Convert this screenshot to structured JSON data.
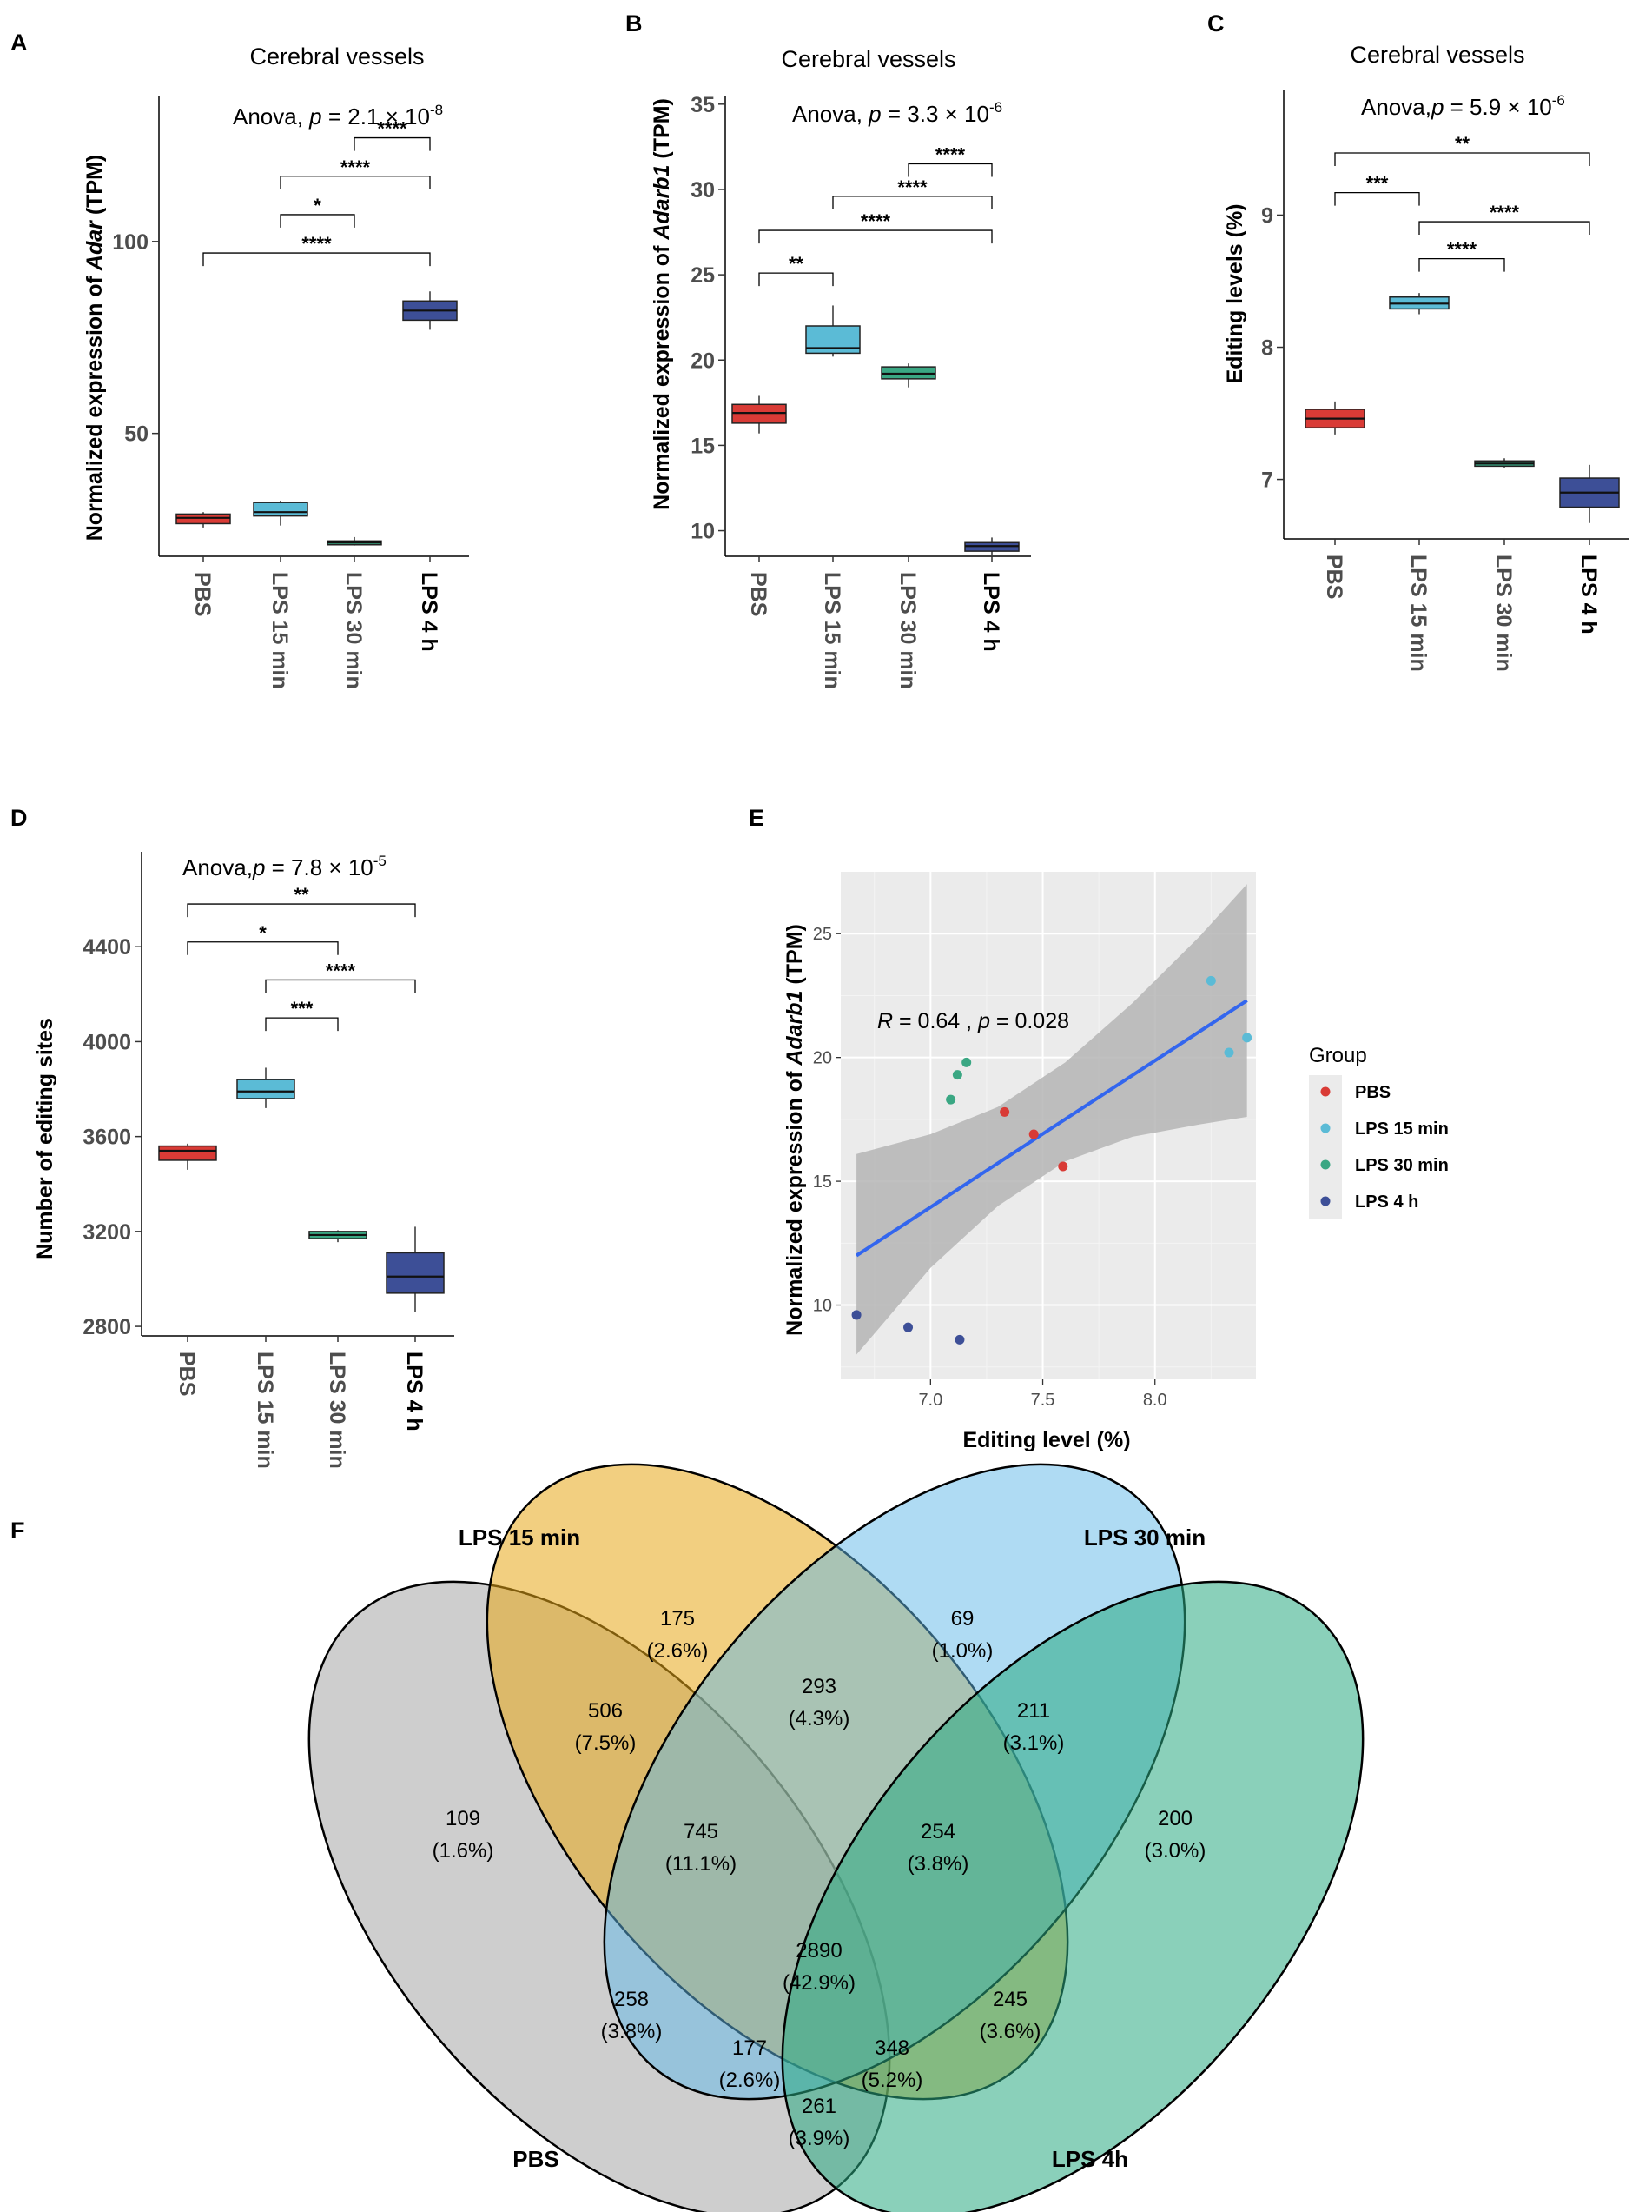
{
  "panels": {
    "A": {
      "letter": "A",
      "title": "Cerebral vessels",
      "anova_prefix": "Anova, ",
      "anova_p": "p",
      "anova_eq": " = 2.1 × 10",
      "anova_exp": "-8",
      "ylabel_pre": "Normalized expression of ",
      "ylabel_gene": "Adar",
      "ylabel_post": " (TPM)"
    },
    "B": {
      "letter": "B",
      "title": "Cerebral vessels",
      "anova_prefix": "Anova, ",
      "anova_p": "p",
      "anova_eq": " = 3.3  × 10",
      "anova_exp": "-6",
      "ylabel_pre": "Normalized expression of ",
      "ylabel_gene": "Adarb1",
      "ylabel_post": " (TPM)"
    },
    "C": {
      "letter": "C",
      "title": "Cerebral vessels",
      "anova_prefix": "Anova,",
      "anova_p": "p",
      "anova_eq": " = 5.9 × 10",
      "anova_exp": "-6",
      "ylabel_pre": "Editing levels (%)",
      "ylabel_gene": "",
      "ylabel_post": ""
    },
    "D": {
      "letter": "D",
      "title": "",
      "anova_prefix": "Anova,",
      "anova_p": "p",
      "anova_eq": " = 7.8 × 10",
      "anova_exp": "-5",
      "ylabel_pre": "Number of editing sites",
      "ylabel_gene": "",
      "ylabel_post": ""
    },
    "E": {
      "letter": "E",
      "xlabel": "Editing level (%)",
      "ylabel_pre": "Normalized expression of ",
      "ylabel_gene": "Adarb1",
      "ylabel_post": " (TPM)",
      "cor_R": "R",
      "cor_text1": " = 0.64 , ",
      "cor_p": "p",
      "cor_text2": " = 0.028",
      "legend_title": "Group"
    },
    "F": {
      "letter": "F"
    }
  },
  "groups": [
    "PBS",
    "LPS 15 min",
    "LPS 30 min",
    "LPS 4 h"
  ],
  "colors": {
    "PBS": "#d93b36",
    "LPS 15 min": "#5bbbd6",
    "LPS 30 min": "#3aa783",
    "LPS 4 h": "#3d4f97",
    "regression": "#3366ee",
    "band": "#b5b5b5",
    "panel_bg": "#ebebeb"
  },
  "chart_data": [
    {
      "id": "A",
      "type": "box",
      "ylim": [
        18,
        138
      ],
      "yticks": [
        50,
        100
      ],
      "categories": [
        "PBS",
        "LPS 15 min",
        "LPS 30 min",
        "LPS 4 h"
      ],
      "boxes": [
        {
          "q1": 26.5,
          "median": 28,
          "q3": 29,
          "min": 25.5,
          "max": 29.5
        },
        {
          "q1": 28.5,
          "median": 29.5,
          "q3": 32,
          "min": 26,
          "max": 32.5
        },
        {
          "q1": 21,
          "median": 21.6,
          "q3": 22,
          "min": 20.8,
          "max": 23
        },
        {
          "q1": 79.5,
          "median": 82,
          "q3": 84.5,
          "min": 77,
          "max": 87
        }
      ],
      "brackets": [
        {
          "from": 3,
          "to": 4,
          "y": 127,
          "label": "****"
        },
        {
          "from": 2,
          "to": 4,
          "y": 117,
          "label": "****"
        },
        {
          "from": 2,
          "to": 3,
          "y": 107,
          "label": "*"
        },
        {
          "from": 1,
          "to": 4,
          "y": 97,
          "label": "****"
        }
      ]
    },
    {
      "id": "B",
      "type": "box",
      "ylim": [
        8.5,
        35.5
      ],
      "yticks": [
        10,
        15,
        20,
        25,
        30,
        35
      ],
      "categories": [
        "PBS",
        "LPS 15 min",
        "LPS 30 min",
        "LPS 4 h"
      ],
      "boxes": [
        {
          "q1": 16.3,
          "median": 16.9,
          "q3": 17.4,
          "min": 15.7,
          "max": 17.9
        },
        {
          "q1": 20.4,
          "median": 20.7,
          "q3": 22,
          "min": 20.2,
          "max": 23.2
        },
        {
          "q1": 18.9,
          "median": 19.2,
          "q3": 19.6,
          "min": 18.4,
          "max": 19.8
        },
        {
          "q1": 8.8,
          "median": 9.1,
          "q3": 9.3,
          "min": 8.6,
          "max": 9.6
        }
      ],
      "brackets": [
        {
          "from": 3,
          "to": 4,
          "y": 31.5,
          "label": "****"
        },
        {
          "from": 2,
          "to": 4,
          "y": 29.6,
          "label": "****"
        },
        {
          "from": 1,
          "to": 4,
          "y": 27.6,
          "label": "****"
        },
        {
          "from": 1,
          "to": 2,
          "y": 25.1,
          "label": "**"
        }
      ]
    },
    {
      "id": "C",
      "type": "box",
      "ylim": [
        6.55,
        9.95
      ],
      "yticks": [
        7,
        8,
        9
      ],
      "categories": [
        "PBS",
        "LPS 15 min",
        "LPS 30 min",
        "LPS 4 h"
      ],
      "boxes": [
        {
          "q1": 7.39,
          "median": 7.46,
          "q3": 7.53,
          "min": 7.34,
          "max": 7.59
        },
        {
          "q1": 8.29,
          "median": 8.33,
          "q3": 8.38,
          "min": 8.25,
          "max": 8.41
        },
        {
          "q1": 7.1,
          "median": 7.12,
          "q3": 7.14,
          "min": 7.09,
          "max": 7.16
        },
        {
          "q1": 6.79,
          "median": 6.9,
          "q3": 7.01,
          "min": 6.67,
          "max": 7.11
        }
      ],
      "brackets": [
        {
          "from": 1,
          "to": 4,
          "y": 9.47,
          "label": "**"
        },
        {
          "from": 1,
          "to": 2,
          "y": 9.17,
          "label": "***"
        },
        {
          "from": 2,
          "to": 4,
          "y": 8.95,
          "label": "****"
        },
        {
          "from": 2,
          "to": 3,
          "y": 8.67,
          "label": "****"
        }
      ]
    },
    {
      "id": "D",
      "type": "box",
      "ylim": [
        2760,
        4800
      ],
      "yticks": [
        2800,
        3200,
        3600,
        4000,
        4400
      ],
      "categories": [
        "PBS",
        "LPS 15 min",
        "LPS 30 min",
        "LPS 4 h"
      ],
      "boxes": [
        {
          "q1": 3500,
          "median": 3540,
          "q3": 3560,
          "min": 3460,
          "max": 3570
        },
        {
          "q1": 3760,
          "median": 3790,
          "q3": 3840,
          "min": 3720,
          "max": 3890
        },
        {
          "q1": 3170,
          "median": 3185,
          "q3": 3200,
          "min": 3155,
          "max": 3205
        },
        {
          "q1": 2940,
          "median": 3010,
          "q3": 3110,
          "min": 2860,
          "max": 3220
        }
      ],
      "brackets": [
        {
          "from": 1,
          "to": 4,
          "y": 4580,
          "label": "**"
        },
        {
          "from": 1,
          "to": 3,
          "y": 4420,
          "label": "*"
        },
        {
          "from": 2,
          "to": 4,
          "y": 4260,
          "label": "****"
        },
        {
          "from": 2,
          "to": 3,
          "y": 4100,
          "label": "***"
        }
      ]
    },
    {
      "id": "E",
      "type": "scatter",
      "xlim": [
        6.6,
        8.45
      ],
      "ylim": [
        7,
        27.5
      ],
      "xticks": [
        7.0,
        7.5,
        8.0
      ],
      "yticks": [
        10,
        15,
        20,
        25
      ],
      "points": [
        {
          "group": "PBS",
          "x": 7.33,
          "y": 17.8
        },
        {
          "group": "PBS",
          "x": 7.46,
          "y": 16.9
        },
        {
          "group": "PBS",
          "x": 7.59,
          "y": 15.6
        },
        {
          "group": "LPS 15 min",
          "x": 8.25,
          "y": 23.1
        },
        {
          "group": "LPS 15 min",
          "x": 8.33,
          "y": 20.2
        },
        {
          "group": "LPS 15 min",
          "x": 8.41,
          "y": 20.8
        },
        {
          "group": "LPS 30 min",
          "x": 7.09,
          "y": 18.3
        },
        {
          "group": "LPS 30 min",
          "x": 7.12,
          "y": 19.3
        },
        {
          "group": "LPS 30 min",
          "x": 7.16,
          "y": 19.8
        },
        {
          "group": "LPS 4 h",
          "x": 6.67,
          "y": 9.6
        },
        {
          "group": "LPS 4 h",
          "x": 6.9,
          "y": 9.1
        },
        {
          "group": "LPS 4 h",
          "x": 7.13,
          "y": 8.6
        }
      ],
      "fit": {
        "x0": 6.67,
        "y0": 12.0,
        "x1": 8.41,
        "y1": 22.3
      },
      "ci": [
        {
          "x": 6.67,
          "lo": 8.0,
          "hi": 16.1
        },
        {
          "x": 7.0,
          "lo": 11.5,
          "hi": 16.9
        },
        {
          "x": 7.3,
          "lo": 14.0,
          "hi": 18.0
        },
        {
          "x": 7.6,
          "lo": 15.8,
          "hi": 19.8
        },
        {
          "x": 7.9,
          "lo": 16.8,
          "hi": 22.2
        },
        {
          "x": 8.2,
          "lo": 17.3,
          "hi": 24.9
        },
        {
          "x": 8.41,
          "lo": 17.6,
          "hi": 27.0
        }
      ]
    }
  ],
  "venn": {
    "set_labels": {
      "lps15": "LPS 15 min",
      "lps30": "LPS 30 min",
      "pbs": "PBS",
      "lps4h": "LPS 4h"
    },
    "regions": [
      {
        "id": "lps15-only",
        "n": "175",
        "pct": "(2.6%)"
      },
      {
        "id": "lps30-only",
        "n": "69",
        "pct": "(1.0%)"
      },
      {
        "id": "lps15-lps30",
        "n": "293",
        "pct": "(4.3%)"
      },
      {
        "id": "pbs-lps15",
        "n": "506",
        "pct": "(7.5%)"
      },
      {
        "id": "lps30-lps4h",
        "n": "211",
        "pct": "(3.1%)"
      },
      {
        "id": "pbs-only",
        "n": "109",
        "pct": "(1.6%)"
      },
      {
        "id": "lps4h-only",
        "n": "200",
        "pct": "(3.0%)"
      },
      {
        "id": "pbs-lps15-lps30",
        "n": "745",
        "pct": "(11.1%)"
      },
      {
        "id": "lps15-lps30-lps4h",
        "n": "254",
        "pct": "(3.8%)"
      },
      {
        "id": "all-four",
        "n": "2890",
        "pct": "(42.9%)"
      },
      {
        "id": "pbs-lps30",
        "n": "258",
        "pct": "(3.8%)"
      },
      {
        "id": "lps15-lps4h",
        "n": "245",
        "pct": "(3.6%)"
      },
      {
        "id": "pbs-lps30-lps4h",
        "n": "177",
        "pct": "(2.6%)"
      },
      {
        "id": "pbs-lps15-lps4h",
        "n": "348",
        "pct": "(5.2%)"
      },
      {
        "id": "pbs-lps4h",
        "n": "261",
        "pct": "(3.9%)"
      }
    ]
  }
}
